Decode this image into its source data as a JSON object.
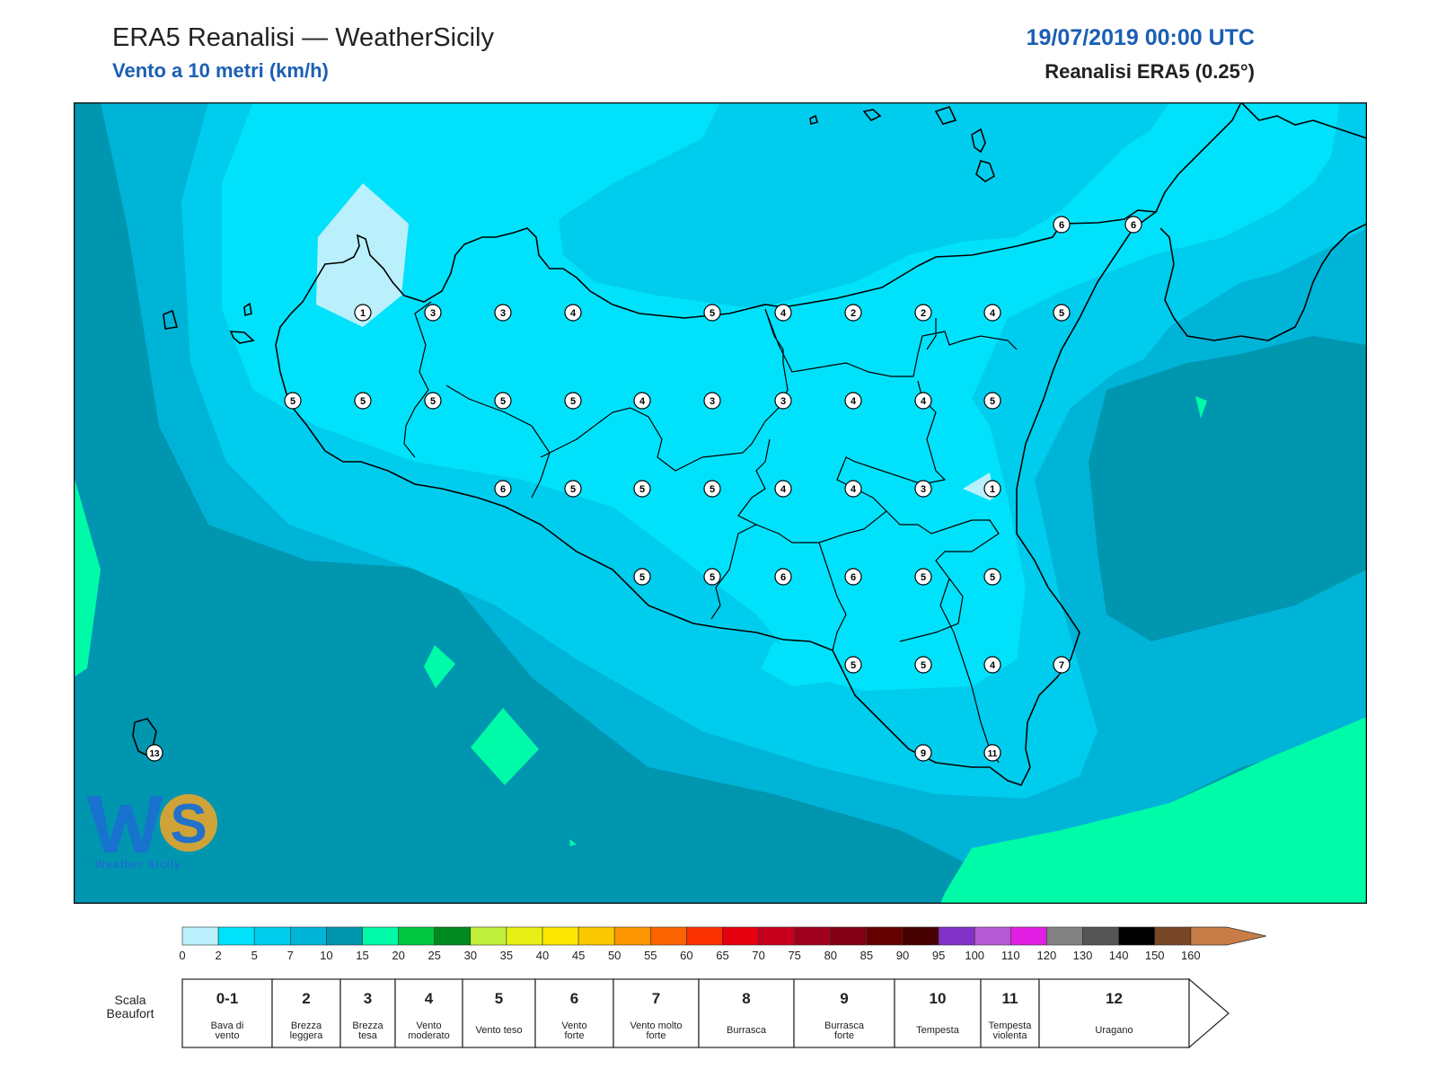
{
  "header": {
    "title": "ERA5 Reanalisi — WeatherSicily",
    "subtitle": "Vento a 10 metri (km/h)",
    "datetime": "19/07/2019 00:00 UTC",
    "model": "Reanalisi ERA5 (0.25°)"
  },
  "logo": {
    "letters": "WS",
    "text": "Weather Sicily"
  },
  "colorbar": {
    "colors": [
      "#b9f0fb",
      "#00e2fb",
      "#00cded",
      "#00b4d8",
      "#0096b0",
      "#00fba8",
      "#00c840",
      "#008a20",
      "#c0f03c",
      "#e6f014",
      "#fbe600",
      "#fbc800",
      "#fb9600",
      "#fb6400",
      "#fb3200",
      "#e6000f",
      "#c8001e",
      "#a0001e",
      "#820014",
      "#640000",
      "#460000",
      "#8232c8",
      "#b45ad2",
      "#e11ee1",
      "#828282",
      "#555555",
      "#000000",
      "#7a4628",
      "#c87d46"
    ],
    "ticks": [
      "0",
      "2",
      "5",
      "7",
      "10",
      "15",
      "20",
      "25",
      "30",
      "35",
      "40",
      "45",
      "50",
      "55",
      "60",
      "65",
      "70",
      "75",
      "80",
      "85",
      "90",
      "95",
      "100",
      "110",
      "120",
      "130",
      "140",
      "150",
      "160"
    ]
  },
  "beaufort": {
    "label_line1": "Scala",
    "label_line2": "Beaufort",
    "cells": [
      {
        "force": "0-1",
        "line1": "Bava di",
        "line2": "vento"
      },
      {
        "force": "2",
        "line1": "Brezza",
        "line2": "leggera"
      },
      {
        "force": "3",
        "line1": "Brezza",
        "line2": "tesa"
      },
      {
        "force": "4",
        "line1": "Vento",
        "line2": "moderato"
      },
      {
        "force": "5",
        "line1": "Vento teso",
        "line2": ""
      },
      {
        "force": "6",
        "line1": "Vento",
        "line2": "forte"
      },
      {
        "force": "7",
        "line1": "Vento molto",
        "line2": "forte"
      },
      {
        "force": "8",
        "line1": "Burrasca",
        "line2": ""
      },
      {
        "force": "9",
        "line1": "Burrasca",
        "line2": "forte"
      },
      {
        "force": "10",
        "line1": "Tempesta",
        "line2": ""
      },
      {
        "force": "11",
        "line1": "Tempesta",
        "line2": "violenta"
      },
      {
        "force": "12",
        "line1": "Uragano",
        "line2": ""
      }
    ]
  },
  "stations": [
    {
      "v": "6"
    },
    {
      "v": "6"
    },
    {
      "v": "1"
    },
    {
      "v": "3"
    },
    {
      "v": "3"
    },
    {
      "v": "4"
    },
    {
      "v": "5"
    },
    {
      "v": "4"
    },
    {
      "v": "2"
    },
    {
      "v": "2"
    },
    {
      "v": "4"
    },
    {
      "v": "5"
    },
    {
      "v": "5"
    },
    {
      "v": "5"
    },
    {
      "v": "5"
    },
    {
      "v": "5"
    },
    {
      "v": "5"
    },
    {
      "v": "4"
    },
    {
      "v": "3"
    },
    {
      "v": "3"
    },
    {
      "v": "4"
    },
    {
      "v": "4"
    },
    {
      "v": "5"
    },
    {
      "v": "6"
    },
    {
      "v": "5"
    },
    {
      "v": "5"
    },
    {
      "v": "5"
    },
    {
      "v": "4"
    },
    {
      "v": "4"
    },
    {
      "v": "3"
    },
    {
      "v": "1"
    },
    {
      "v": "5"
    },
    {
      "v": "5"
    },
    {
      "v": "6"
    },
    {
      "v": "6"
    },
    {
      "v": "5"
    },
    {
      "v": "5"
    },
    {
      "v": "5"
    },
    {
      "v": "5"
    },
    {
      "v": "4"
    },
    {
      "v": "7"
    },
    {
      "v": "9"
    },
    {
      "v": "11"
    },
    {
      "v": "13"
    }
  ]
}
